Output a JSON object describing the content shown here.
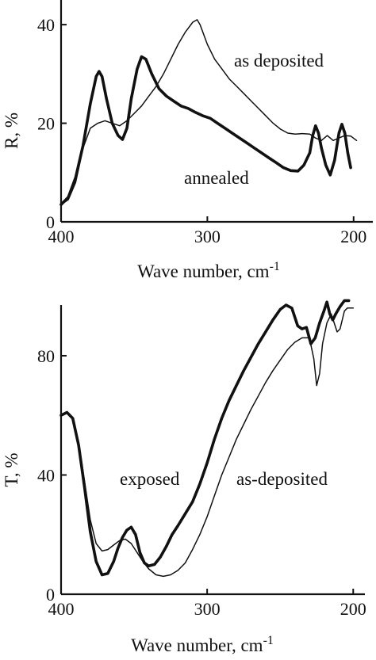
{
  "chart_data": [
    {
      "type": "line",
      "ylabel": "R, %",
      "xlabel_main": "Wave number, cm",
      "xlabel_sup": "-1",
      "xlim": [
        400,
        195
      ],
      "ylim": [
        0,
        45
      ],
      "xticks": [
        {
          "v": 400,
          "label": "400"
        },
        {
          "v": 300,
          "label": "300"
        },
        {
          "v": 200,
          "label": "200"
        }
      ],
      "yticks": [
        {
          "v": 0,
          "label": "0"
        },
        {
          "v": 20,
          "label": "20"
        },
        {
          "v": 40,
          "label": "40"
        }
      ],
      "series": [
        {
          "name": "as deposited",
          "weight": "thin",
          "points": [
            [
              400,
              3.5
            ],
            [
              395,
              4.5
            ],
            [
              390,
              8
            ],
            [
              385,
              15
            ],
            [
              380,
              19
            ],
            [
              375,
              20
            ],
            [
              370,
              20.5
            ],
            [
              365,
              20
            ],
            [
              360,
              19.5
            ],
            [
              355,
              20.5
            ],
            [
              350,
              22
            ],
            [
              345,
              23.5
            ],
            [
              340,
              25.5
            ],
            [
              335,
              27.5
            ],
            [
              330,
              30
            ],
            [
              325,
              33
            ],
            [
              320,
              36
            ],
            [
              315,
              38.5
            ],
            [
              310,
              40.5
            ],
            [
              307,
              41
            ],
            [
              305,
              40
            ],
            [
              300,
              36
            ],
            [
              295,
              33
            ],
            [
              290,
              31
            ],
            [
              285,
              29
            ],
            [
              280,
              27.5
            ],
            [
              275,
              26
            ],
            [
              270,
              24.5
            ],
            [
              265,
              23
            ],
            [
              260,
              21.5
            ],
            [
              255,
              20
            ],
            [
              250,
              18.8
            ],
            [
              245,
              18
            ],
            [
              240,
              17.8
            ],
            [
              235,
              17.9
            ],
            [
              230,
              17.8
            ],
            [
              226,
              17
            ],
            [
              222,
              16.5
            ],
            [
              218,
              17.5
            ],
            [
              214,
              16.5
            ],
            [
              210,
              17
            ],
            [
              206,
              17.5
            ],
            [
              202,
              17.4
            ],
            [
              198,
              16.5
            ]
          ]
        },
        {
          "name": "annealed",
          "weight": "thick",
          "points": [
            [
              400,
              3.5
            ],
            [
              395,
              5
            ],
            [
              390,
              9
            ],
            [
              385,
              15.5
            ],
            [
              380,
              24
            ],
            [
              376,
              29.5
            ],
            [
              374,
              30.5
            ],
            [
              372,
              29.5
            ],
            [
              369,
              25
            ],
            [
              365,
              20
            ],
            [
              361,
              17.5
            ],
            [
              358,
              16.7
            ],
            [
              355,
              19
            ],
            [
              352,
              25
            ],
            [
              348,
              31
            ],
            [
              345,
              33.5
            ],
            [
              342,
              33
            ],
            [
              338,
              30
            ],
            [
              333,
              27
            ],
            [
              328,
              25.5
            ],
            [
              323,
              24.5
            ],
            [
              318,
              23.5
            ],
            [
              313,
              23
            ],
            [
              308,
              22.2
            ],
            [
              303,
              21.5
            ],
            [
              298,
              21
            ],
            [
              293,
              20
            ],
            [
              288,
              19
            ],
            [
              283,
              18
            ],
            [
              278,
              17
            ],
            [
              273,
              16
            ],
            [
              268,
              15
            ],
            [
              263,
              14
            ],
            [
              258,
              13
            ],
            [
              253,
              12
            ],
            [
              248,
              11
            ],
            [
              243,
              10.4
            ],
            [
              238,
              10.3
            ],
            [
              234,
              11.5
            ],
            [
              230,
              14
            ],
            [
              228,
              17.5
            ],
            [
              226,
              19.5
            ],
            [
              224,
              18
            ],
            [
              222,
              15
            ],
            [
              219,
              11.5
            ],
            [
              216,
              9.5
            ],
            [
              213,
              12.5
            ],
            [
              210,
              18
            ],
            [
              208,
              19.8
            ],
            [
              206,
              18
            ],
            [
              204,
              14
            ],
            [
              202,
              11
            ]
          ]
        }
      ],
      "annotations": [
        "as deposited",
        "annealed"
      ]
    },
    {
      "type": "line",
      "ylabel": "T, %",
      "xlabel_main": "Wave number, cm",
      "xlabel_sup": "-1",
      "xlim": [
        400,
        192
      ],
      "ylim": [
        0,
        97
      ],
      "xticks": [
        {
          "v": 400,
          "label": "400"
        },
        {
          "v": 300,
          "label": "300"
        },
        {
          "v": 200,
          "label": "200"
        }
      ],
      "yticks": [
        {
          "v": 0,
          "label": "0"
        },
        {
          "v": 40,
          "label": "40"
        },
        {
          "v": 80,
          "label": "80"
        }
      ],
      "series": [
        {
          "name": "as-deposited",
          "weight": "thin",
          "points": [
            [
              400,
              60
            ],
            [
              396,
              61
            ],
            [
              392,
              59
            ],
            [
              388,
              51
            ],
            [
              384,
              38
            ],
            [
              380,
              25
            ],
            [
              376,
              17
            ],
            [
              372,
              14.5
            ],
            [
              368,
              15
            ],
            [
              364,
              16.5
            ],
            [
              360,
              18
            ],
            [
              356,
              18.5
            ],
            [
              352,
              17
            ],
            [
              348,
              14
            ],
            [
              344,
              11
            ],
            [
              340,
              8.5
            ],
            [
              335,
              6.5
            ],
            [
              330,
              6
            ],
            [
              325,
              6.5
            ],
            [
              320,
              8
            ],
            [
              315,
              10.5
            ],
            [
              310,
              15
            ],
            [
              305,
              20
            ],
            [
              300,
              26
            ],
            [
              295,
              33
            ],
            [
              290,
              40
            ],
            [
              285,
              46
            ],
            [
              280,
              52
            ],
            [
              275,
              57
            ],
            [
              270,
              62
            ],
            [
              265,
              66.5
            ],
            [
              260,
              71
            ],
            [
              255,
              75
            ],
            [
              250,
              78.5
            ],
            [
              245,
              82
            ],
            [
              240,
              84.5
            ],
            [
              235,
              86
            ],
            [
              230,
              86
            ],
            [
              227,
              79
            ],
            [
              225,
              70
            ],
            [
              223,
              74
            ],
            [
              221,
              84
            ],
            [
              218,
              91
            ],
            [
              215,
              94
            ],
            [
              213,
              91
            ],
            [
              211,
              88
            ],
            [
              209,
              89
            ],
            [
              206,
              95
            ],
            [
              204,
              96
            ],
            [
              200,
              96
            ]
          ]
        },
        {
          "name": "exposed",
          "weight": "thick",
          "points": [
            [
              400,
              60
            ],
            [
              396,
              61
            ],
            [
              392,
              59
            ],
            [
              388,
              50
            ],
            [
              384,
              36
            ],
            [
              380,
              21
            ],
            [
              376,
              11
            ],
            [
              372,
              6.5
            ],
            [
              368,
              7
            ],
            [
              364,
              11
            ],
            [
              361,
              15.5
            ],
            [
              358,
              19
            ],
            [
              355,
              21.5
            ],
            [
              352,
              22.5
            ],
            [
              349,
              20
            ],
            [
              346,
              14
            ],
            [
              343,
              10.5
            ],
            [
              340,
              9.5
            ],
            [
              336,
              10
            ],
            [
              332,
              12.5
            ],
            [
              328,
              16
            ],
            [
              324,
              20
            ],
            [
              320,
              23
            ],
            [
              315,
              27
            ],
            [
              310,
              31
            ],
            [
              305,
              37
            ],
            [
              300,
              44
            ],
            [
              295,
              52
            ],
            [
              290,
              59
            ],
            [
              285,
              65
            ],
            [
              280,
              70
            ],
            [
              275,
              75
            ],
            [
              270,
              79.5
            ],
            [
              265,
              84
            ],
            [
              260,
              88
            ],
            [
              255,
              92
            ],
            [
              250,
              95.5
            ],
            [
              246,
              97
            ],
            [
              242,
              96
            ],
            [
              238,
              90
            ],
            [
              235,
              89
            ],
            [
              232,
              89.5
            ],
            [
              229,
              84
            ],
            [
              226,
              86
            ],
            [
              223,
              91
            ],
            [
              220,
              95
            ],
            [
              218,
              98
            ],
            [
              216,
              94
            ],
            [
              214,
              92
            ],
            [
              212,
              94
            ],
            [
              209,
              96.5
            ],
            [
              206,
              98.5
            ],
            [
              203,
              98.5
            ]
          ]
        }
      ],
      "annotations": [
        "exposed",
        "as-deposited"
      ]
    }
  ]
}
